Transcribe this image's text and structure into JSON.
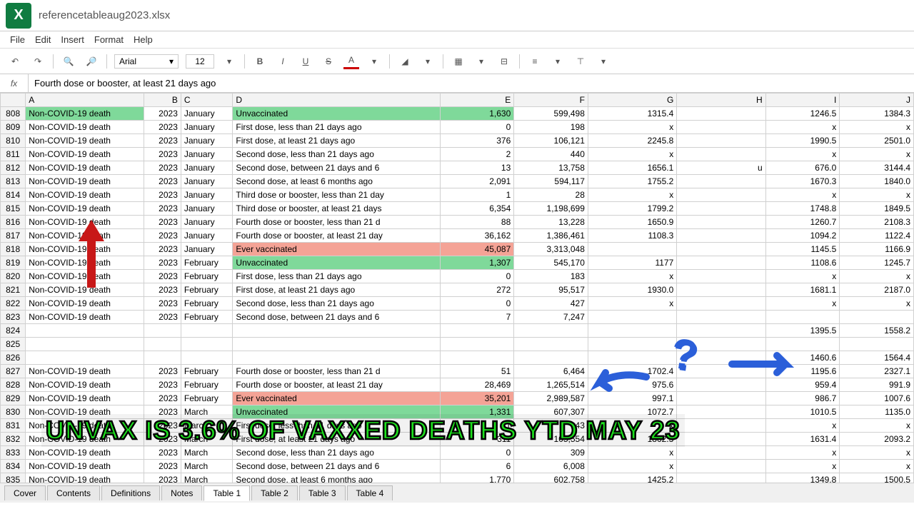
{
  "filename": "referencetableaug2023.xlsx",
  "app_letter": "X",
  "menu": [
    "File",
    "Edit",
    "Insert",
    "Format",
    "Help"
  ],
  "toolbar": {
    "font": "Arial",
    "size": "12"
  },
  "formula": "Fourth dose or booster, at least 21 days ago",
  "columns": [
    "",
    "A",
    "B",
    "C",
    "D",
    "E",
    "F",
    "G",
    "H",
    "I",
    "J"
  ],
  "col_widths": [
    "rowhead",
    "col-A",
    "col-B",
    "col-C",
    "col-D",
    "col-E",
    "col-F",
    "col-G",
    "col-H",
    "col-I",
    "col-J"
  ],
  "rows": [
    {
      "n": 808,
      "a": "Non-COVID-19 death",
      "b": "2023",
      "c": "January",
      "d": "Unvaccinated",
      "e": "1,630",
      "f": "599,498",
      "g": "1315.4",
      "h": "",
      "i": "1246.5",
      "j": "1384.3",
      "hlA": "hl-green",
      "hlD": "hl-green",
      "hlE": "hl-green"
    },
    {
      "n": 809,
      "a": "Non-COVID-19 death",
      "b": "2023",
      "c": "January",
      "d": "First dose, less than 21 days ago",
      "e": "0",
      "f": "198",
      "g": "x",
      "h": "",
      "i": "x",
      "j": "x"
    },
    {
      "n": 810,
      "a": "Non-COVID-19 death",
      "b": "2023",
      "c": "January",
      "d": "First dose, at least 21 days ago",
      "e": "376",
      "f": "106,121",
      "g": "2245.8",
      "h": "",
      "i": "1990.5",
      "j": "2501.0"
    },
    {
      "n": 811,
      "a": "Non-COVID-19 death",
      "b": "2023",
      "c": "January",
      "d": "Second dose, less than 21 days ago",
      "e": "2",
      "f": "440",
      "g": "x",
      "h": "",
      "i": "x",
      "j": "x"
    },
    {
      "n": 812,
      "a": "Non-COVID-19 death",
      "b": "2023",
      "c": "January",
      "d": "Second dose, between 21 days and 6",
      "e": "13",
      "f": "13,758",
      "g": "1656.1",
      "h": "u",
      "i": "676.0",
      "j": "3144.4"
    },
    {
      "n": 813,
      "a": "Non-COVID-19 death",
      "b": "2023",
      "c": "January",
      "d": "Second dose, at least 6 months ago",
      "e": "2,091",
      "f": "594,117",
      "g": "1755.2",
      "h": "",
      "i": "1670.3",
      "j": "1840.0"
    },
    {
      "n": 814,
      "a": "Non-COVID-19 death",
      "b": "2023",
      "c": "January",
      "d": "Third dose or booster, less than 21 day",
      "e": "1",
      "f": "28",
      "g": "x",
      "h": "",
      "i": "x",
      "j": "x"
    },
    {
      "n": 815,
      "a": "Non-COVID-19 death",
      "b": "2023",
      "c": "January",
      "d": "Third dose or booster, at least 21 days",
      "e": "6,354",
      "f": "1,198,699",
      "g": "1799.2",
      "h": "",
      "i": "1748.8",
      "j": "1849.5"
    },
    {
      "n": 816,
      "a": "Non-COVID-19 death",
      "b": "2023",
      "c": "January",
      "d": "Fourth dose or booster, less than 21 d",
      "e": "88",
      "f": "13,228",
      "g": "1650.9",
      "h": "",
      "i": "1260.7",
      "j": "2108.3"
    },
    {
      "n": 817,
      "a": "Non-COVID-19 death",
      "b": "2023",
      "c": "January",
      "d": "Fourth dose or booster, at least 21 day",
      "e": "36,162",
      "f": "1,386,461",
      "g": "1108.3",
      "h": "",
      "i": "1094.2",
      "j": "1122.4"
    },
    {
      "n": 818,
      "a": "Non-COVID-19 death",
      "b": "2023",
      "c": "January",
      "d": "Ever vaccinated",
      "e": "45,087",
      "f": "3,313,048",
      "g": "",
      "h": "",
      "i": "1145.5",
      "j": "1166.9",
      "hlD": "hl-red",
      "hlE": "hl-red"
    },
    {
      "n": 819,
      "a": "Non-COVID-19 death",
      "b": "2023",
      "c": "February",
      "d": "Unvaccinated",
      "e": "1,307",
      "f": "545,170",
      "g": "1177",
      "h": "",
      "i": "1108.6",
      "j": "1245.7",
      "hlD": "hl-green",
      "hlE": "hl-green"
    },
    {
      "n": 820,
      "a": "Non-COVID-19 death",
      "b": "2023",
      "c": "February",
      "d": "First dose, less than 21 days ago",
      "e": "0",
      "f": "183",
      "g": "x",
      "h": "",
      "i": "x",
      "j": "x"
    },
    {
      "n": 821,
      "a": "Non-COVID-19 death",
      "b": "2023",
      "c": "February",
      "d": "First dose, at least 21 days ago",
      "e": "272",
      "f": "95,517",
      "g": "1930.0",
      "h": "",
      "i": "1681.1",
      "j": "2187.0"
    },
    {
      "n": 822,
      "a": "Non-COVID-19 death",
      "b": "2023",
      "c": "February",
      "d": "Second dose, less than 21 days ago",
      "e": "0",
      "f": "427",
      "g": "x",
      "h": "",
      "i": "x",
      "j": "x"
    },
    {
      "n": 823,
      "a": "Non-COVID-19 death",
      "b": "2023",
      "c": "February",
      "d": "Second dose, between 21 days and 6",
      "e": "7",
      "f": "7,247",
      "g": "",
      "h": "",
      "i": "",
      "j": ""
    },
    {
      "n": 824,
      "a": "",
      "b": "",
      "c": "",
      "d": "",
      "e": "",
      "f": "",
      "g": "",
      "h": "",
      "i": "1395.5",
      "j": "1558.2"
    },
    {
      "n": 825,
      "a": "",
      "b": "",
      "c": "",
      "d": "",
      "e": "",
      "f": "",
      "g": "",
      "h": "",
      "i": "",
      "j": ""
    },
    {
      "n": 826,
      "a": "",
      "b": "",
      "c": "",
      "d": "",
      "e": "",
      "f": "",
      "g": "",
      "h": "",
      "i": "1460.6",
      "j": "1564.4"
    },
    {
      "n": 827,
      "a": "Non-COVID-19 death",
      "b": "2023",
      "c": "February",
      "d": "Fourth dose or booster, less than 21 d",
      "e": "51",
      "f": "6,464",
      "g": "1702.4",
      "h": "",
      "i": "1195.6",
      "j": "2327.1"
    },
    {
      "n": 828,
      "a": "Non-COVID-19 death",
      "b": "2023",
      "c": "February",
      "d": "Fourth dose or booster, at least 21 day",
      "e": "28,469",
      "f": "1,265,514",
      "g": "975.6",
      "h": "",
      "i": "959.4",
      "j": "991.9"
    },
    {
      "n": 829,
      "a": "Non-COVID-19 death",
      "b": "2023",
      "c": "February",
      "d": "Ever vaccinated",
      "e": "35,201",
      "f": "2,989,587",
      "g": "997.1",
      "h": "",
      "i": "986.7",
      "j": "1007.6",
      "hlD": "hl-red",
      "hlE": "hl-red"
    },
    {
      "n": 830,
      "a": "Non-COVID-19 death",
      "b": "2023",
      "c": "March",
      "d": "Unvaccinated",
      "e": "1,331",
      "f": "607,307",
      "g": "1072.7",
      "h": "",
      "i": "1010.5",
      "j": "1135.0",
      "hlD": "hl-green",
      "hlE": "hl-green"
    },
    {
      "n": 831,
      "a": "Non-COVID-19 death",
      "b": "2023",
      "c": "March",
      "d": "First dose, less than 21 days ago",
      "e": "1",
      "f": "143",
      "g": "x",
      "h": "",
      "i": "x",
      "j": "x"
    },
    {
      "n": 832,
      "a": "Non-COVID-19 death",
      "b": "2023",
      "c": "March",
      "d": "First dose, at least 21 days ago",
      "e": "311",
      "f": "105,554",
      "g": "1862.3",
      "h": "",
      "i": "1631.4",
      "j": "2093.2"
    },
    {
      "n": 833,
      "a": "Non-COVID-19 death",
      "b": "2023",
      "c": "March",
      "d": "Second dose, less than 21 days ago",
      "e": "0",
      "f": "309",
      "g": "x",
      "h": "",
      "i": "x",
      "j": "x"
    },
    {
      "n": 834,
      "a": "Non-COVID-19 death",
      "b": "2023",
      "c": "March",
      "d": "Second dose, between 21 days and 6",
      "e": "6",
      "f": "6,008",
      "g": "x",
      "h": "",
      "i": "x",
      "j": "x"
    },
    {
      "n": 835,
      "a": "Non-COVID-19 death",
      "b": "2023",
      "c": "March",
      "d": "Second dose, at least 6 months ago",
      "e": "1,770",
      "f": "602,758",
      "g": "1425.2",
      "h": "",
      "i": "1349.8",
      "j": "1500.5"
    }
  ],
  "sheets": [
    "Cover",
    "Contents",
    "Definitions",
    "Notes",
    "Table 1",
    "Table 2",
    "Table 3",
    "Table 4"
  ],
  "active_sheet": 4,
  "banner_text": "UNVAX IS 3.6% OF VAXXED DEATHS YTD MAY 23",
  "annotation_colors": {
    "red_arrow": "#c81818",
    "blue": "#2b5fd9",
    "banner_text": "#1de01d",
    "banner_stroke": "#000000"
  }
}
